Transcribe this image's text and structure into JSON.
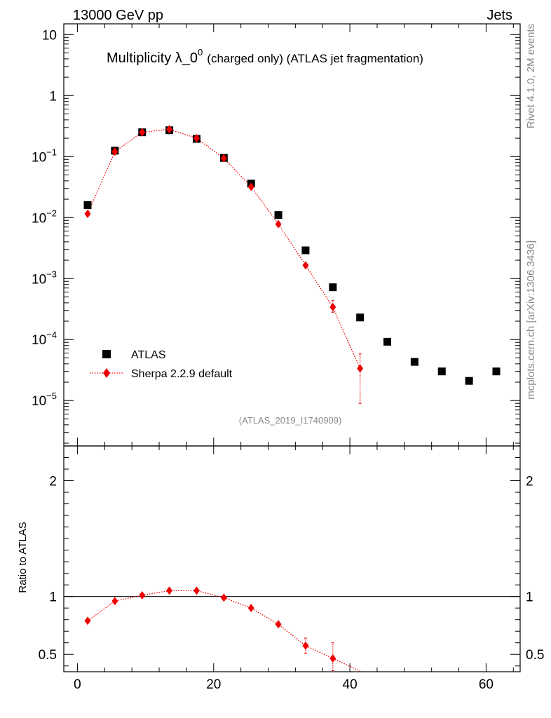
{
  "header": {
    "left": "13000 GeV pp",
    "right": "Jets"
  },
  "side": {
    "top": "Rivet 4.1.0,  2M events",
    "bottom": "mcplots.cern.ch [arXiv:1306.3436]"
  },
  "watermark": "(ATLAS_2019_I1740909)",
  "colors": {
    "data": "#000000",
    "mc": "#ee0000",
    "watermark": "#888888"
  },
  "chart_data": [
    {
      "type": "scatter",
      "panel": "main",
      "title": "Multiplicity λ_0⁰ (charged only) (ATLAS jet fragmentation)",
      "title_main": "Multiplicity λ_0",
      "title_sup": "0",
      "title_rest": "(charged only) (ATLAS jet fragmentation)",
      "xlabel": "",
      "ylabel": "",
      "yscale": "log",
      "xlim": [
        -2,
        65
      ],
      "ylim": [
        1.8e-06,
        15
      ],
      "y_tick_labels": [
        {
          "value": 10,
          "base": "10",
          "exp": ""
        },
        {
          "value": 1,
          "base": "1",
          "exp": ""
        },
        {
          "value": 0.1,
          "base": "10",
          "exp": "−1"
        },
        {
          "value": 0.01,
          "base": "10",
          "exp": "−2"
        },
        {
          "value": 0.001,
          "base": "10",
          "exp": "−3"
        },
        {
          "value": 0.0001,
          "base": "10",
          "exp": "−4"
        },
        {
          "value": 1e-05,
          "base": "10",
          "exp": "−5"
        }
      ],
      "legend": {
        "placement": "bottom-left",
        "entries": [
          "ATLAS",
          "Sherpa 2.2.9 default"
        ]
      },
      "series": [
        {
          "name": "ATLAS",
          "style": "square",
          "x": [
            1.5,
            5.5,
            9.5,
            13.5,
            17.5,
            21.5,
            25.5,
            29.5,
            33.5,
            37.5,
            41.5,
            45.5,
            49.5,
            53.5,
            57.5,
            61.5
          ],
          "y": [
            0.016,
            0.125,
            0.25,
            0.27,
            0.195,
            0.095,
            0.036,
            0.011,
            0.0029,
            0.00072,
            0.00023,
            9.2e-05,
            4.3e-05,
            3e-05,
            2.1e-05,
            3e-05
          ]
        },
        {
          "name": "Sherpa 2.2.9 default",
          "style": "diamond",
          "x": [
            1.5,
            5.5,
            9.5,
            13.5,
            17.5,
            21.5,
            25.5,
            29.5,
            33.5,
            37.5,
            41.5
          ],
          "y": [
            0.0115,
            0.12,
            0.25,
            0.28,
            0.2,
            0.094,
            0.032,
            0.0078,
            0.00165,
            0.00034,
            3.35e-05
          ],
          "yerr_low": [
            0.0112,
            0.117,
            0.245,
            0.265,
            0.196,
            0.092,
            0.0312,
            0.0075,
            0.00158,
            0.00028,
            9e-06
          ],
          "yerr_high": [
            0.0118,
            0.123,
            0.255,
            0.31,
            0.204,
            0.096,
            0.0328,
            0.0081,
            0.00172,
            0.00044,
            5.8e-05
          ]
        }
      ]
    },
    {
      "type": "scatter",
      "panel": "ratio",
      "ylabel": "Ratio to ATLAS",
      "xlim": [
        -2,
        65
      ],
      "ylim": [
        0.35,
        2.3
      ],
      "x_ticks": [
        0,
        20,
        40,
        60
      ],
      "y_ticks": [
        0.5,
        1,
        2
      ],
      "y_tick_labels": [
        "0.5",
        "1",
        "2"
      ],
      "reference_line": 1,
      "series": [
        {
          "name": "Sherpa 2.2.9 default",
          "x": [
            1.5,
            5.5,
            9.5,
            13.5,
            17.5,
            21.5,
            25.5,
            29.5,
            33.5,
            37.5
          ],
          "y": [
            0.79,
            0.96,
            1.01,
            1.05,
            1.05,
            0.99,
            0.9,
            0.76,
            0.575,
            0.465
          ],
          "yerr_low": [
            0.77,
            0.95,
            1.0,
            1.04,
            1.04,
            0.98,
            0.89,
            0.74,
            0.51,
            0.36
          ],
          "yerr_high": [
            0.81,
            0.97,
            1.02,
            1.06,
            1.06,
            1.0,
            0.91,
            0.78,
            0.64,
            0.6
          ]
        }
      ]
    }
  ]
}
